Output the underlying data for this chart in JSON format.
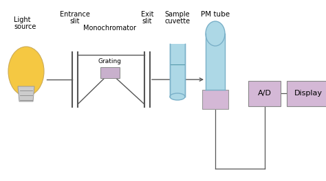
{
  "bg_color": "#ffffff",
  "bulb_color": "#f5c842",
  "bulb_edge_color": "#ccaa55",
  "tube_color": "#add8e6",
  "tube_edge_color": "#7ab0c8",
  "base_color": "#d4b8d6",
  "base_edge_color": "#999999",
  "box_color": "#d4b8d6",
  "box_edge_color": "#888888",
  "line_color": "#555555",
  "grating_color": "#c8b0cc",
  "labels": {
    "light_source_1": "Light",
    "light_source_2": "source",
    "entrance_slit_1": "Entrance",
    "entrance_slit_2": "slit",
    "monochromator": "Monochromator",
    "grating": "Grating",
    "exit_slit_1": "Exit",
    "exit_slit_2": "slit",
    "sample_cuvette_1": "Sample",
    "sample_cuvette_2": "cuvette",
    "pm_tube": "PM tube",
    "ad": "A/D",
    "display": "Display"
  }
}
